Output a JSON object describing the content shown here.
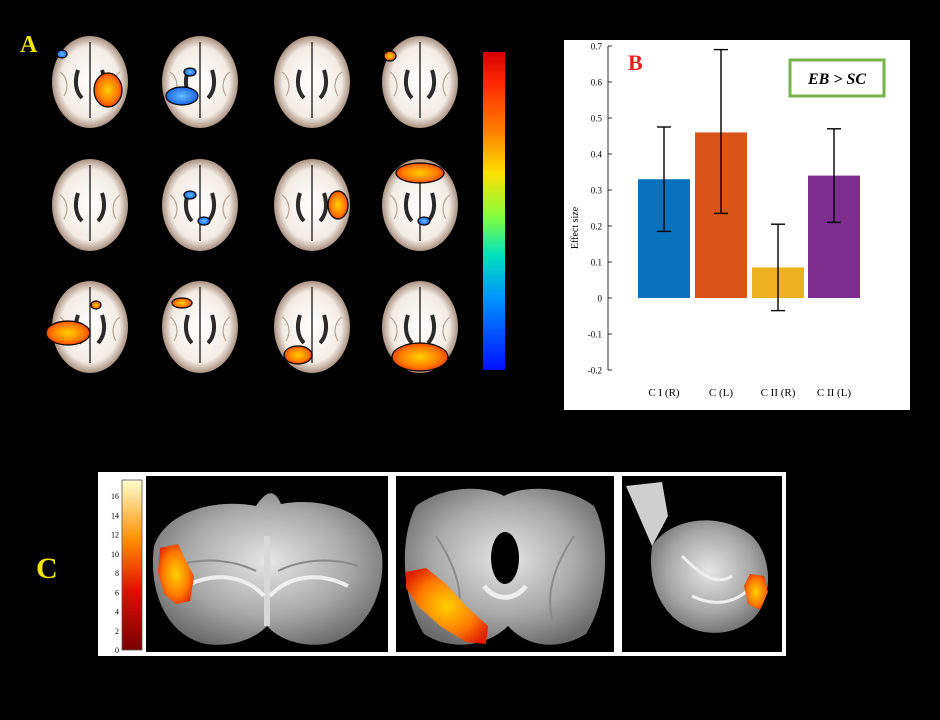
{
  "panel_labels": {
    "a": "A",
    "b": "B",
    "c": "C"
  },
  "panel_a": {
    "brains": [
      {
        "blobs": [
          "orange-posterior-right",
          "blue-small-left"
        ]
      },
      {
        "blobs": [
          "blue-left-posterior",
          "blue-scattered"
        ]
      },
      {
        "blobs": []
      },
      {
        "blobs": [
          "orange-rim"
        ]
      },
      {
        "blobs": []
      },
      {
        "blobs": [
          "blue-scattered",
          "blue-small"
        ]
      },
      {
        "blobs": [
          "orange-lateral-right"
        ]
      },
      {
        "blobs": [
          "red-frontal",
          "blue-small"
        ]
      },
      {
        "blobs": [
          "red-left-lateral",
          "orange-small"
        ]
      },
      {
        "blobs": [
          "orange-scattered"
        ]
      },
      {
        "blobs": [
          "orange-posterior-left"
        ]
      },
      {
        "blobs": [
          "red-occipital"
        ]
      }
    ],
    "colorbar": [
      "#d50000",
      "#ff8000",
      "#ffe000",
      "#80ff40",
      "#00e0c0",
      "#0090ff",
      "#0010ff"
    ]
  },
  "chart_data": {
    "type": "bar",
    "title": "",
    "ylabel": "Effect size",
    "xlabel": "",
    "ylim": [
      -0.2,
      0.7
    ],
    "yticks": [
      -0.2,
      -0.1,
      0,
      0.1,
      0.2,
      0.3,
      0.4,
      0.5,
      0.6,
      0.7
    ],
    "ytick_labels": [
      "-0.2",
      "-0.1",
      "0",
      "0.1",
      "0.2",
      "0.3",
      "0.4",
      "0.5",
      "0.6",
      "0.7"
    ],
    "categories": [
      "C I (R)",
      "C (L)",
      "C II (R)",
      "C II (L)"
    ],
    "values": [
      0.33,
      0.46,
      0.085,
      0.34
    ],
    "error_low": [
      0.185,
      0.235,
      -0.035,
      0.21
    ],
    "error_high": [
      0.475,
      0.69,
      0.205,
      0.47
    ],
    "colors": [
      "#0a72bd",
      "#d95319",
      "#edb120",
      "#7e2f8e"
    ],
    "legend_box": "EB > SC",
    "legend_box_color": "#77b24b",
    "panel_label_color": "#e8201c"
  },
  "panel_c": {
    "colorbar_ticks": [
      "16",
      "14",
      "12",
      "10",
      "8",
      "6",
      "4",
      "2",
      "0"
    ],
    "views": [
      "coronal",
      "axial",
      "sagittal"
    ]
  }
}
